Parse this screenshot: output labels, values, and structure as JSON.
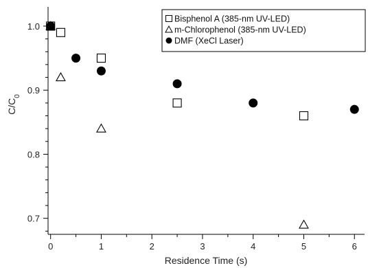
{
  "chart_data": {
    "type": "scatter",
    "xlabel": "Residence Time (s)",
    "ylabel_main": "C/C",
    "ylabel_sub": "0",
    "xlim": [
      -0.05,
      6.2
    ],
    "ylim": [
      0.675,
      1.03
    ],
    "x_ticks": [
      0,
      1,
      2,
      3,
      4,
      5,
      6
    ],
    "y_ticks": [
      0.7,
      0.8,
      0.9,
      1.0
    ],
    "x_tick_labels": [
      "0",
      "1",
      "2",
      "3",
      "4",
      "5",
      "6"
    ],
    "y_tick_labels": [
      "0.7",
      "0.8",
      "0.9",
      "1.0"
    ],
    "grid": false,
    "legend_position": "top-right",
    "series": [
      {
        "name": "Bisphenol A (385-nm UV-LED)",
        "marker": "open-square",
        "points": [
          {
            "x": 0,
            "y": 1.0
          },
          {
            "x": 0.2,
            "y": 0.99
          },
          {
            "x": 1,
            "y": 0.95
          },
          {
            "x": 2.5,
            "y": 0.88
          },
          {
            "x": 5,
            "y": 0.86
          }
        ]
      },
      {
        "name": "m-Chlorophenol (385-nm UV-LED)",
        "marker": "open-triangle",
        "points": [
          {
            "x": 0,
            "y": 1.0
          },
          {
            "x": 0.2,
            "y": 0.92
          },
          {
            "x": 1,
            "y": 0.84
          },
          {
            "x": 5,
            "y": 0.69
          }
        ]
      },
      {
        "name": "DMF (XeCl Laser)",
        "marker": "filled-circle",
        "points": [
          {
            "x": 0,
            "y": 1.0
          },
          {
            "x": 0.5,
            "y": 0.95
          },
          {
            "x": 1,
            "y": 0.93
          },
          {
            "x": 2.5,
            "y": 0.91
          },
          {
            "x": 4,
            "y": 0.88
          },
          {
            "x": 6,
            "y": 0.87
          }
        ]
      }
    ],
    "colors": {
      "marker": "#000000",
      "axis": "#000000"
    }
  }
}
